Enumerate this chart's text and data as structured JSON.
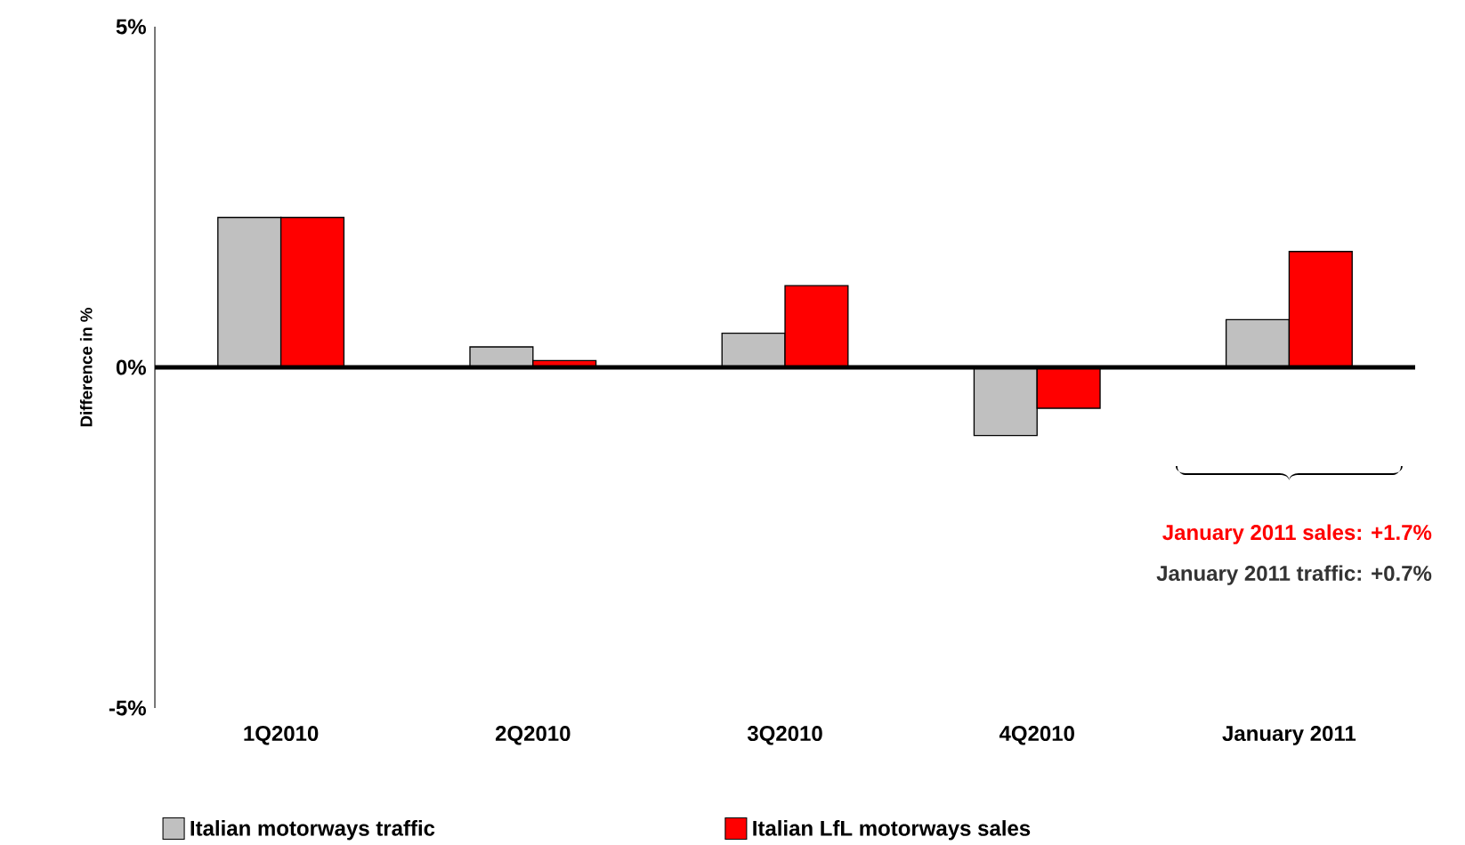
{
  "chart_data": {
    "type": "bar",
    "ylabel": "Difference in %",
    "categories": [
      "1Q2010",
      "2Q2010",
      "3Q2010",
      "4Q2010",
      "January 2011"
    ],
    "series": [
      {
        "name": "Italian motorways traffic",
        "color": "#c0c0c0",
        "values": [
          2.2,
          0.3,
          0.5,
          -1.0,
          0.7
        ]
      },
      {
        "name": "Italian LfL motorways sales",
        "color": "#ff0000",
        "values": [
          2.2,
          0.1,
          1.2,
          -0.6,
          1.7
        ]
      }
    ],
    "ylim": [
      -5,
      5
    ],
    "yticks": [
      {
        "value": -5,
        "label": "-5%"
      },
      {
        "value": 0,
        "label": "0%"
      },
      {
        "value": 5,
        "label": "5%"
      }
    ],
    "annotations": [
      "January 2011 sales: +1.7%",
      "January 2011 traffic: +0.7%"
    ],
    "legend": "bottom"
  }
}
